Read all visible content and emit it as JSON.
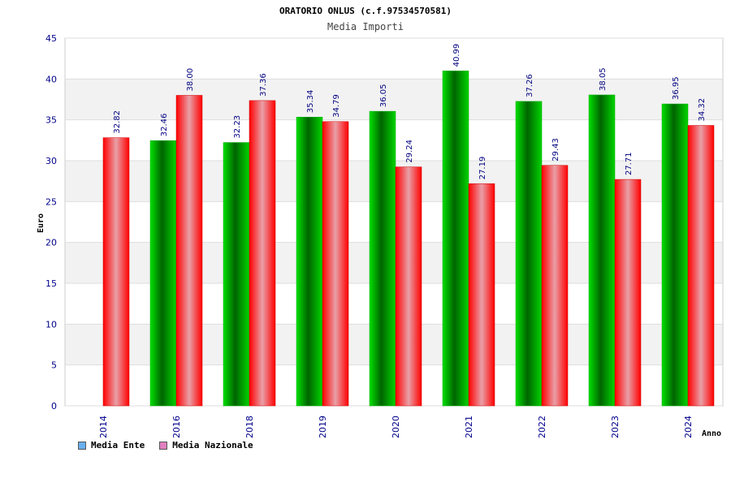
{
  "chart_data": {
    "type": "bar",
    "title": "ORATORIO ONLUS (c.f.97534570581)",
    "subtitle": "Media Importi",
    "xlabel": "Anno",
    "ylabel": "Euro",
    "ylim": [
      0,
      45
    ],
    "yticks": [
      "0",
      "5",
      "10",
      "15",
      "20",
      "25",
      "30",
      "35",
      "40",
      "45"
    ],
    "grid": true,
    "legend_position": "bottom-left",
    "categories": [
      "2014",
      "2016",
      "2018",
      "2019",
      "2020",
      "2021",
      "2022",
      "2023",
      "2024"
    ],
    "series": [
      {
        "name": "Media Ente",
        "color": "#00cc00",
        "legend_color": "#6ab0f0",
        "values": [
          null,
          32.46,
          32.23,
          35.34,
          36.05,
          40.99,
          37.26,
          38.05,
          36.95
        ],
        "labels": [
          "",
          "32.46",
          "32.23",
          "35.34",
          "36.05",
          "40.99",
          "37.26",
          "38.05",
          "36.95"
        ]
      },
      {
        "name": "Media Nazionale",
        "color": "#ff2020",
        "legend_color": "#e080c0",
        "values": [
          32.82,
          38.0,
          37.36,
          34.79,
          29.24,
          27.19,
          29.43,
          27.71,
          34.32
        ],
        "labels": [
          "32.82",
          "38.00",
          "37.36",
          "34.79",
          "29.24",
          "27.19",
          "29.43",
          "27.71",
          "34.32"
        ]
      }
    ]
  }
}
